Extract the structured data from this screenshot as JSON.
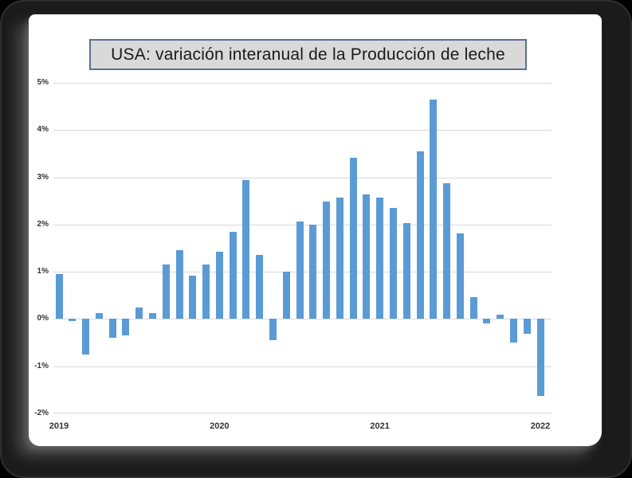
{
  "title": {
    "text": "USA: variación interanual de la Producción de leche"
  },
  "chart_data": {
    "type": "bar",
    "title": "USA: variación interanual de la Producción de leche",
    "x": [
      "2019-01",
      "2019-02",
      "2019-03",
      "2019-04",
      "2019-05",
      "2019-06",
      "2019-07",
      "2019-08",
      "2019-09",
      "2019-10",
      "2019-11",
      "2019-12",
      "2020-01",
      "2020-02",
      "2020-03",
      "2020-04",
      "2020-05",
      "2020-06",
      "2020-07",
      "2020-08",
      "2020-09",
      "2020-10",
      "2020-11",
      "2020-12",
      "2021-01",
      "2021-02",
      "2021-03",
      "2021-04",
      "2021-05",
      "2021-06",
      "2021-07",
      "2021-08",
      "2021-09",
      "2021-10",
      "2021-11",
      "2021-12",
      "2022-01"
    ],
    "values": [
      0.95,
      -0.05,
      -0.75,
      0.12,
      -0.4,
      -0.35,
      0.25,
      0.12,
      1.15,
      1.46,
      0.91,
      1.15,
      1.42,
      1.84,
      2.95,
      1.35,
      -0.45,
      1.01,
      2.07,
      2.0,
      2.48,
      2.57,
      3.41,
      2.64,
      2.57,
      2.36,
      2.03,
      3.55,
      4.65,
      2.88,
      1.81,
      0.47,
      -0.1,
      0.1,
      -0.5,
      -0.32,
      -1.63
    ],
    "x_tick_labels": [
      "2019",
      "2020",
      "2021",
      "2022"
    ],
    "x_tick_positions": [
      0,
      12,
      24,
      36
    ],
    "y_ticks": [
      5,
      4,
      3,
      2,
      1,
      0,
      -1,
      -2
    ],
    "y_tick_suffix": "%",
    "ylim": [
      -2,
      5
    ],
    "grid": "horizontal",
    "legend": "none",
    "colors": {
      "bar": "#5B9BD5",
      "gridline": "#D9D9D9",
      "title_box_fill": "#D9D9D9",
      "title_box_border": "#5C6E91",
      "title_text": "#1A1A1A",
      "axis_text": "#333333"
    }
  }
}
